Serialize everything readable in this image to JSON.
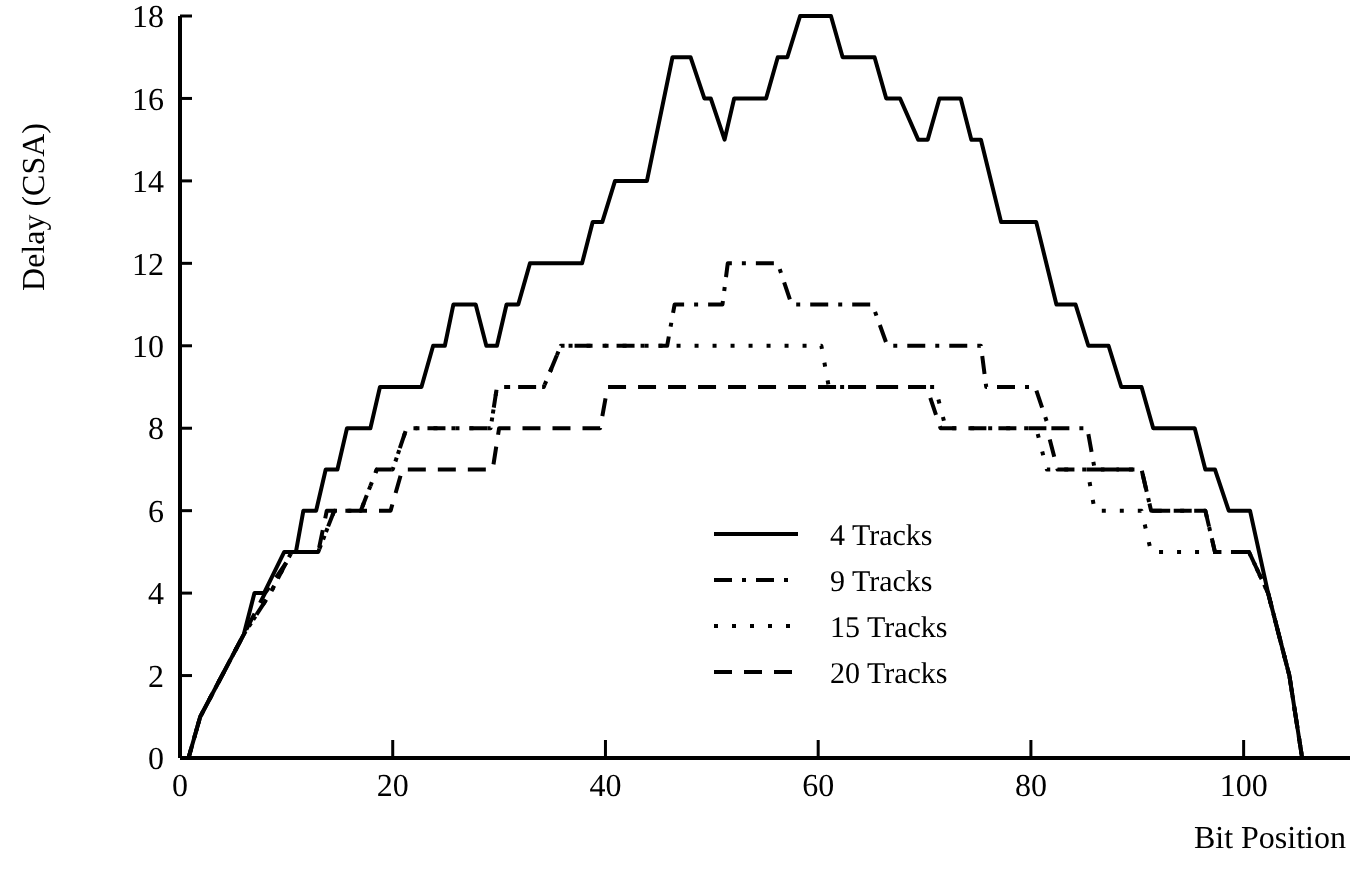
{
  "chart_data": {
    "type": "line",
    "xlabel": "Bit Position",
    "ylabel": "Delay (CSA)",
    "xlim": [
      0,
      110
    ],
    "ylim": [
      0,
      18
    ],
    "xticks": [
      0,
      20,
      40,
      60,
      80,
      100
    ],
    "yticks": [
      0,
      2,
      4,
      6,
      8,
      10,
      12,
      14,
      16,
      18
    ],
    "grid": false,
    "legend": "bottom",
    "marker": "none",
    "series": [
      {
        "name": "4 Tracks",
        "color": "#000000",
        "line_style": "solid",
        "x": [
          0,
          0.8,
          1.9,
          6,
          7,
          7.9,
          9.8,
          10.9,
          11.6,
          12.8,
          13.7,
          14.8,
          15.7,
          17.9,
          18.8,
          22.7,
          23.8,
          24.9,
          25.7,
          27.8,
          28.8,
          29.8,
          30.7,
          31.8,
          32.9,
          37.8,
          38.8,
          39.7,
          40.9,
          43.9,
          46.3,
          48,
          49.3,
          49.9,
          51.2,
          52.1,
          55.1,
          56.2,
          57.1,
          58.3,
          61.2,
          62.3,
          65.3,
          66.4,
          67.7,
          69.4,
          70.3,
          71.4,
          73.4,
          74.4,
          75.3,
          77.2,
          80.5,
          82.4,
          84.2,
          85.4,
          87.3,
          88.5,
          90.4,
          91.5,
          95.4,
          96.4,
          97.3,
          98.6,
          100.6,
          102.3,
          104.3,
          105.5
        ],
        "values": [
          0,
          0,
          1,
          3,
          4,
          4,
          5,
          5,
          6,
          6,
          7,
          7,
          8,
          8,
          9,
          9,
          10,
          10,
          11,
          11,
          10,
          10,
          11,
          11,
          12,
          12,
          13,
          13,
          14,
          14,
          17,
          17,
          16,
          16,
          15,
          16,
          16,
          17,
          17,
          18,
          18,
          17,
          17,
          16,
          16,
          15,
          15,
          16,
          16,
          15,
          15,
          13,
          13,
          11,
          11,
          10,
          10,
          9,
          9,
          8,
          8,
          7,
          7,
          6,
          6,
          4,
          2,
          0
        ]
      },
      {
        "name": "9 Tracks",
        "color": "#000000",
        "line_style": "dashdot",
        "x": [
          0,
          0.8,
          1.9,
          6,
          8.5,
          10.5,
          13,
          14.5,
          17,
          18.5,
          20,
          21.3,
          29.2,
          29.8,
          34.2,
          35.8,
          45.8,
          46.5,
          51,
          51.5,
          56.2,
          57.5,
          65.1,
          66.5,
          75.3,
          75.8,
          80.4,
          81.7,
          85.3,
          86,
          90.4,
          91.3,
          96.4,
          97.3,
          100.5,
          102.3,
          104.3,
          105.5
        ],
        "values": [
          0,
          0,
          1,
          3,
          4,
          5,
          5,
          6,
          6,
          7,
          7,
          8,
          8,
          9,
          9,
          10,
          10,
          11,
          11,
          12,
          12,
          11,
          11,
          10,
          10,
          9,
          9,
          8,
          8,
          7,
          7,
          6,
          6,
          5,
          5,
          4,
          2,
          0
        ]
      },
      {
        "name": "15 Tracks",
        "color": "#000000",
        "line_style": "dotted",
        "x": [
          0,
          0.8,
          1.9,
          6,
          8.5,
          10.5,
          13,
          14.5,
          17,
          18.5,
          20,
          21.3,
          29.2,
          29.8,
          34.2,
          35.8,
          60.3,
          61,
          71,
          72,
          80.5,
          81.5,
          85.3,
          86,
          90.4,
          91.3,
          96.4,
          97.3,
          100.5,
          102.3,
          104.3,
          105.5
        ],
        "values": [
          0,
          0,
          1,
          3,
          4,
          5,
          5,
          6,
          6,
          7,
          7,
          8,
          8,
          9,
          9,
          10,
          10,
          9,
          9,
          8,
          8,
          7,
          7,
          6,
          6,
          5,
          5,
          5,
          5,
          4,
          2,
          0
        ]
      },
      {
        "name": "20 Tracks",
        "color": "#000000",
        "line_style": "dashed",
        "x": [
          0,
          0.8,
          1.9,
          6,
          8,
          10.7,
          13,
          13.8,
          19.8,
          20.9,
          29.4,
          30,
          39.5,
          40.2,
          70.2,
          71.5,
          81.5,
          82.5,
          90.4,
          91.3,
          96.4,
          97.3,
          100.5,
          102.3,
          104.3,
          105.5
        ],
        "values": [
          0,
          0,
          1,
          3,
          4,
          5,
          5,
          6,
          6,
          7,
          7,
          8,
          8,
          9,
          9,
          8,
          8,
          7,
          7,
          6,
          6,
          5,
          5,
          4,
          2,
          0
        ]
      }
    ]
  }
}
